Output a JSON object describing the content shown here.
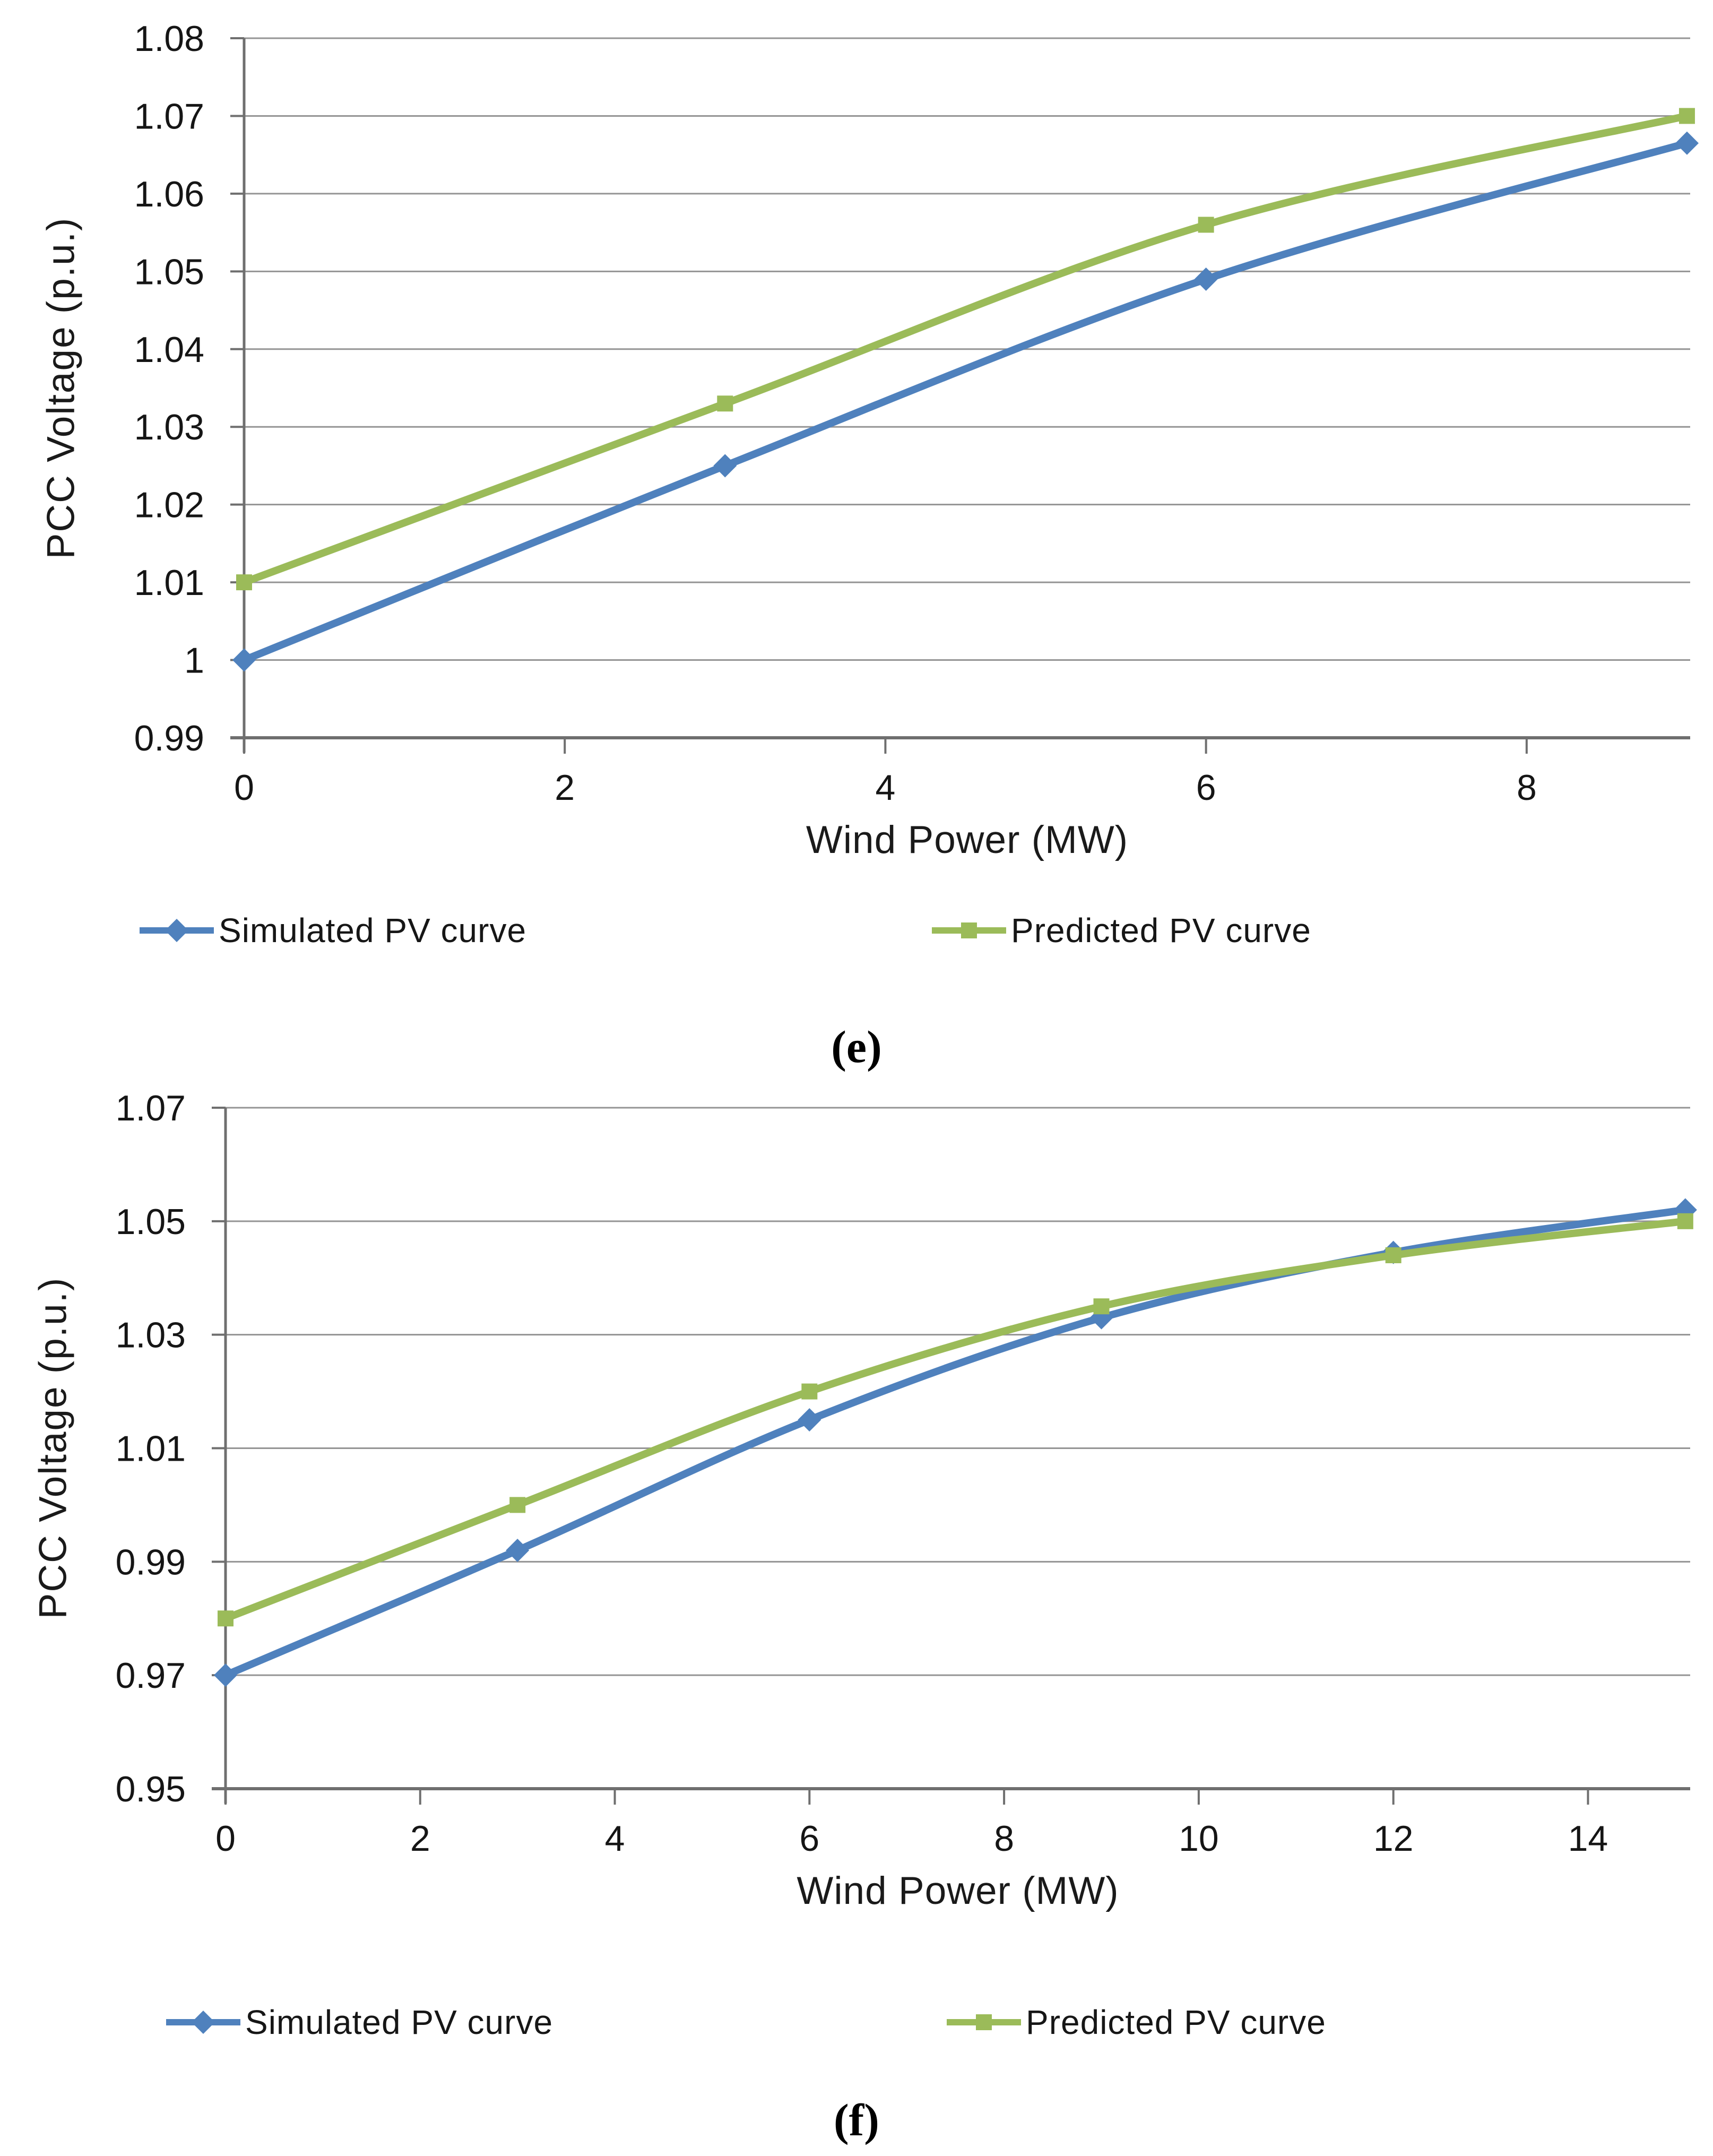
{
  "page": {
    "background": "#ffffff"
  },
  "chart_data": [
    {
      "type": "line",
      "title": "",
      "caption": "(e)",
      "xlabel": "Wind Power (MW)",
      "ylabel": "PCC Voltage (p.u.)",
      "x": [
        0,
        3,
        6,
        9
      ],
      "series": [
        {
          "name": "Simulated PV curve",
          "color": "#4F81BD",
          "marker": "diamond",
          "values": [
            1.0,
            1.025,
            1.049,
            1.0665
          ]
        },
        {
          "name": "Predicted PV curve",
          "color": "#9BBB59",
          "marker": "square",
          "values": [
            1.01,
            1.033,
            1.056,
            1.07
          ]
        }
      ],
      "xlim": [
        0,
        9.02
      ],
      "ylim": [
        0.99,
        1.08
      ],
      "xticks": [
        0,
        2,
        4,
        6,
        8
      ],
      "yticks": [
        0.99,
        1.0,
        1.01,
        1.02,
        1.03,
        1.04,
        1.05,
        1.06,
        1.07,
        1.08
      ],
      "ytick_labels": [
        "0.99",
        "1",
        "1.01",
        "1.02",
        "1.03",
        "1.04",
        "1.05",
        "1.06",
        "1.07",
        "1.08"
      ],
      "grid": true,
      "legend_position": "bottom"
    },
    {
      "type": "line",
      "title": "",
      "caption": "(f)",
      "xlabel": "Wind Power (MW)",
      "ylabel": "PCC Voltage (p.u.)",
      "x": [
        0,
        3,
        6,
        9,
        12,
        15
      ],
      "series": [
        {
          "name": "Simulated PV curve",
          "color": "#4F81BD",
          "marker": "diamond",
          "values": [
            0.97,
            0.992,
            1.015,
            1.033,
            1.0445,
            1.052
          ]
        },
        {
          "name": "Predicted PV curve",
          "color": "#9BBB59",
          "marker": "square",
          "values": [
            0.98,
            1.0,
            1.02,
            1.035,
            1.044,
            1.05
          ]
        }
      ],
      "xlim": [
        0,
        15.05
      ],
      "ylim": [
        0.95,
        1.07
      ],
      "xticks": [
        0,
        2,
        4,
        6,
        8,
        10,
        12,
        14
      ],
      "yticks": [
        0.95,
        0.97,
        0.99,
        1.01,
        1.03,
        1.05,
        1.07
      ],
      "ytick_labels": [
        "0.95",
        "0.97",
        "0.99",
        "1.01",
        "1.03",
        "1.05",
        "1.07"
      ],
      "grid": true,
      "legend_position": "bottom"
    }
  ],
  "colors": {
    "gridline": "#949494",
    "axis": "#6f6f6f",
    "tick_text": "#151515"
  }
}
